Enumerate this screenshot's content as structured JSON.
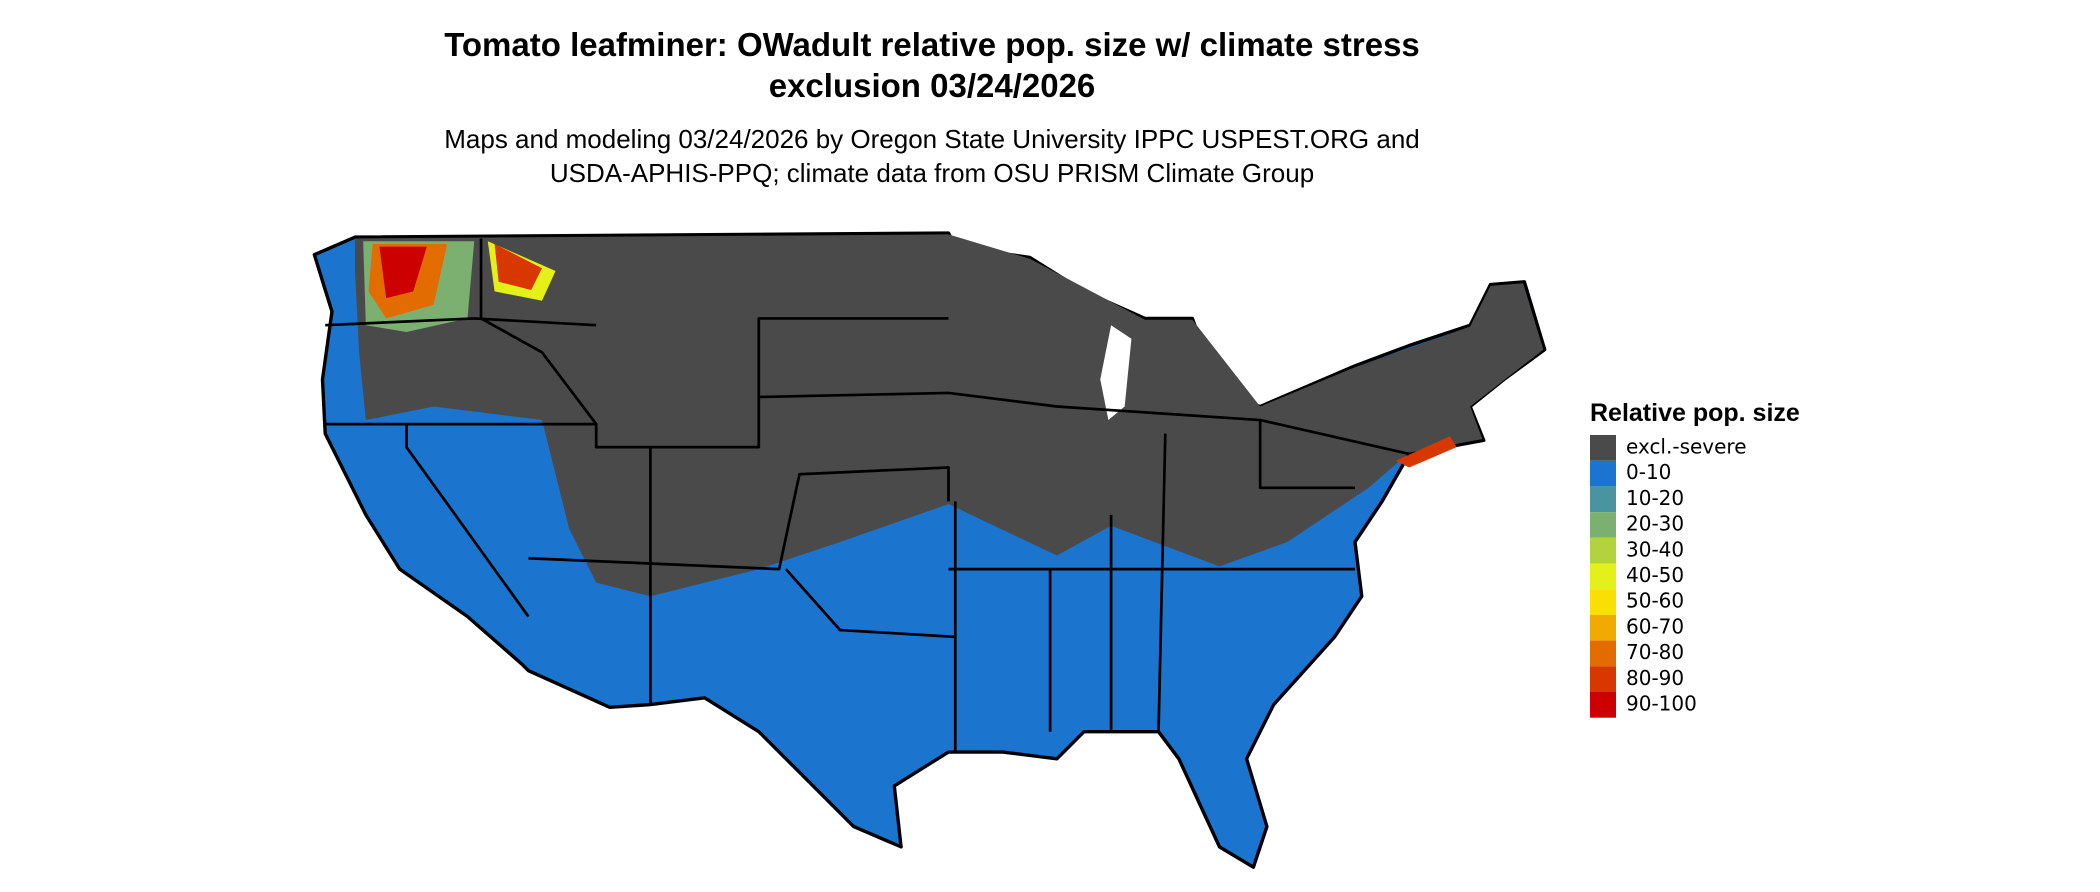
{
  "header": {
    "title_lines": [
      "Tomato leafminer: OWadult relative pop. size w/ climate stress",
      "exclusion 03/24/2026"
    ],
    "subtitle_lines": [
      "Maps and modeling 03/24/2026 by Oregon State University IPPC USPEST.ORG and",
      "USDA-APHIS-PPQ; climate data from OSU PRISM Climate Group"
    ]
  },
  "legend": {
    "title": "Relative pop. size",
    "items": [
      {
        "label": "excl.-severe",
        "color": "#4a4a4a"
      },
      {
        "label": "0-10",
        "color": "#1b74cd"
      },
      {
        "label": "10-20",
        "color": "#4a94a0"
      },
      {
        "label": "20-30",
        "color": "#7cb070"
      },
      {
        "label": "30-40",
        "color": "#b2d23e"
      },
      {
        "label": "40-50",
        "color": "#e3f01a"
      },
      {
        "label": "50-60",
        "color": "#f9e000"
      },
      {
        "label": "60-70",
        "color": "#f0aa00"
      },
      {
        "label": "70-80",
        "color": "#e36c00"
      },
      {
        "label": "80-90",
        "color": "#d83800"
      },
      {
        "label": "90-100",
        "color": "#cc0000"
      }
    ]
  }
}
